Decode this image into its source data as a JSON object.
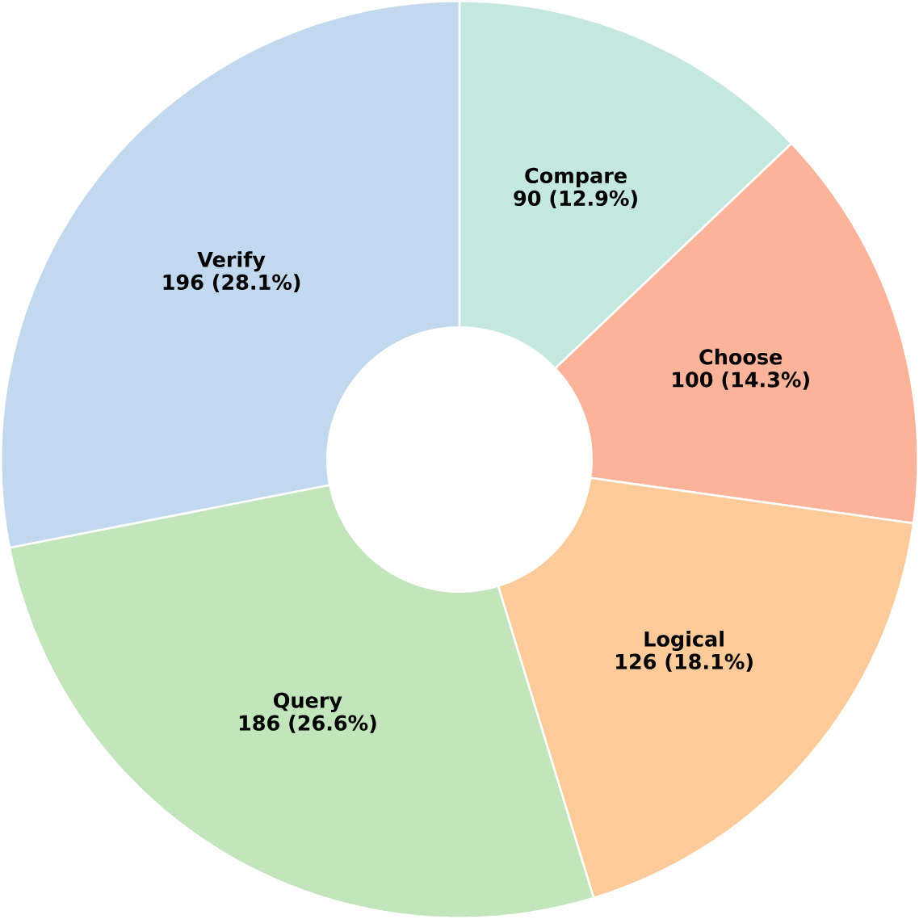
{
  "chart_data": {
    "type": "donut",
    "categories": [
      "Compare",
      "Choose",
      "Logical",
      "Query",
      "Verify"
    ],
    "values": [
      90,
      100,
      126,
      186,
      196
    ],
    "value_labels": [
      "90 (12.9%)",
      "100 (14.3%)",
      "126 (18.1%)",
      "186 (26.6%)",
      "196 (28.1%)"
    ],
    "colors": [
      "#c4e8df",
      "#fbb399",
      "#fdca9a",
      "#c2e5bb",
      "#c1d8ee"
    ]
  }
}
